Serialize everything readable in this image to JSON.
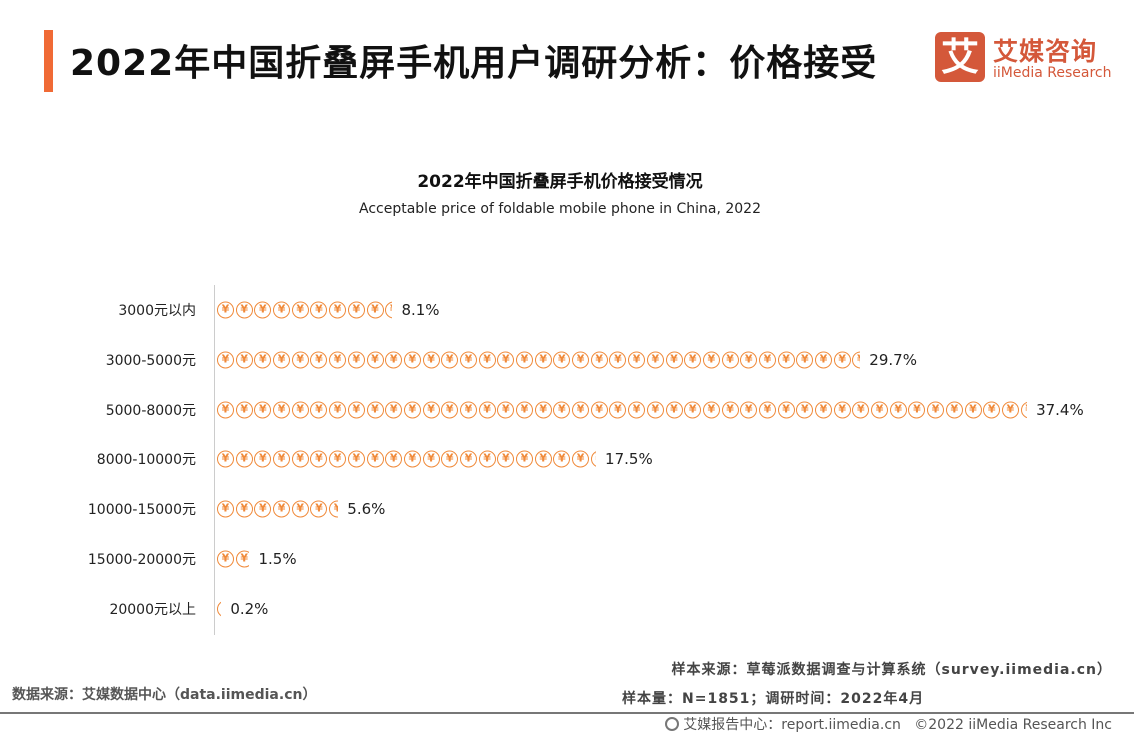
{
  "header": {
    "title": "2022年中国折叠屏手机用户调研分析：价格接受"
  },
  "logo": {
    "mark": "艾",
    "cn": "艾媒咨询",
    "en": "iiMedia Research",
    "color": "#d4583a"
  },
  "chart_data": {
    "type": "bar",
    "orientation": "horizontal",
    "pictograph_icon": "yen-coin-icon",
    "color": "#f08a3a",
    "title": "2022年中国折叠屏手机价格接受情况",
    "subtitle": "Acceptable price of foldable mobile phone in China, 2022",
    "categories": [
      "3000元以内",
      "3000-5000元",
      "5000-8000元",
      "8000-10000元",
      "10000-15000元",
      "15000-20000元",
      "20000元以上"
    ],
    "values": [
      8.1,
      29.7,
      37.4,
      17.5,
      5.6,
      1.5,
      0.2
    ],
    "labels": [
      "8.1%",
      "29.7%",
      "37.4%",
      "17.5%",
      "5.6%",
      "1.5%",
      "0.2%"
    ],
    "unit": "%"
  },
  "footer": {
    "data_source": "数据来源：艾媒数据中心（data.iimedia.cn）",
    "sample_source": "样本来源：草莓派数据调查与计算系统（survey.iimedia.cn）",
    "sample_size": "样本量：N=1851；调研时间：2022年4月",
    "report_center": "艾媒报告中心：report.iimedia.cn",
    "copyright": "©2022 iiMedia Research Inc"
  }
}
